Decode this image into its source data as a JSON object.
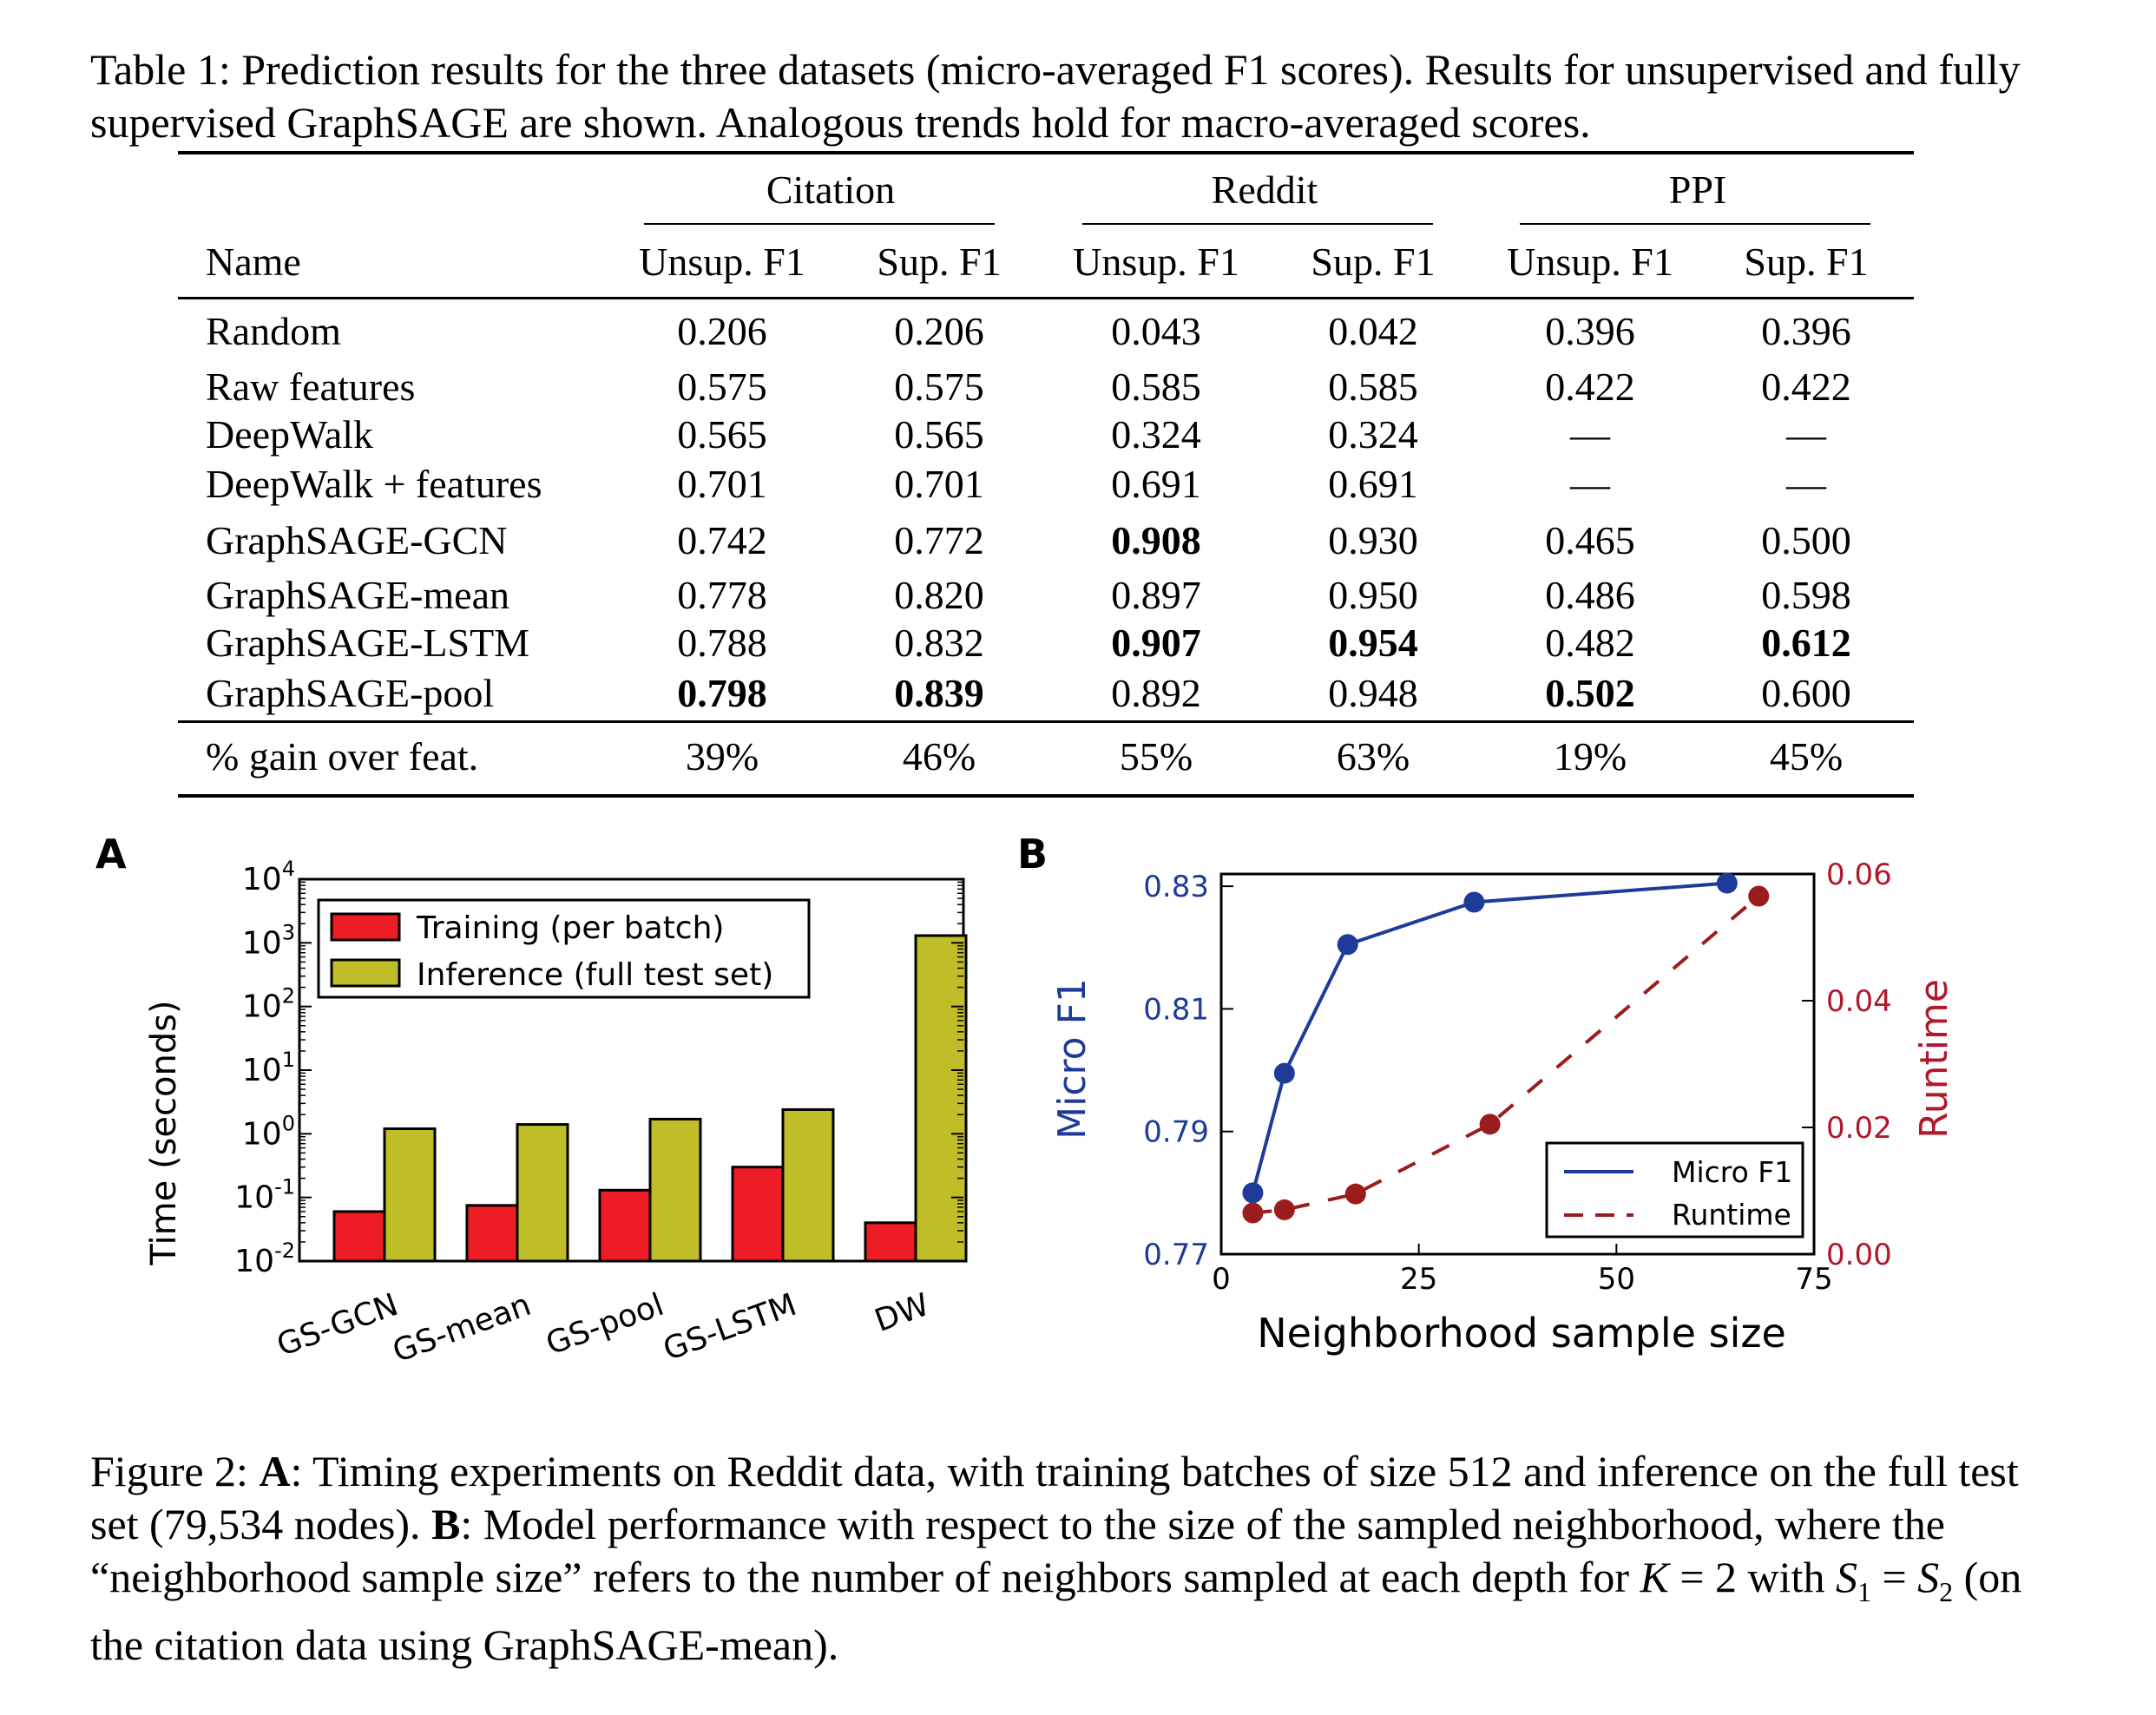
{
  "table": {
    "caption": "Table 1: Prediction results for the three datasets (micro-averaged F1 scores). Results for unsupervised and fully supervised GraphSAGE are shown. Analogous trends hold for macro-averaged scores.",
    "groups": [
      "Citation",
      "Reddit",
      "PPI"
    ],
    "name_header": "Name",
    "sub_headers": [
      "Unsup. F1",
      "Sup. F1",
      "Unsup. F1",
      "Sup. F1",
      "Unsup. F1",
      "Sup. F1"
    ],
    "baseline_rows": [
      {
        "name": "Random",
        "values": [
          "0.206",
          "0.206",
          "0.043",
          "0.042",
          "0.396",
          "0.396"
        ]
      },
      {
        "name": "Raw features",
        "values": [
          "0.575",
          "0.575",
          "0.585",
          "0.585",
          "0.422",
          "0.422"
        ]
      },
      {
        "name": "DeepWalk",
        "values": [
          "0.565",
          "0.565",
          "0.324",
          "0.324",
          "—",
          "—"
        ]
      },
      {
        "name": "DeepWalk + features",
        "values": [
          "0.701",
          "0.701",
          "0.691",
          "0.691",
          "—",
          "—"
        ]
      }
    ],
    "graphsage_rows": [
      {
        "name": "GraphSAGE-GCN",
        "values": [
          "0.742",
          "0.772",
          "0.908",
          "0.930",
          "0.465",
          "0.500"
        ],
        "bold": [
          false,
          false,
          true,
          false,
          false,
          false
        ]
      },
      {
        "name": "GraphSAGE-mean",
        "values": [
          "0.778",
          "0.820",
          "0.897",
          "0.950",
          "0.486",
          "0.598"
        ],
        "bold": [
          false,
          false,
          false,
          false,
          false,
          false
        ]
      },
      {
        "name": "GraphSAGE-LSTM",
        "values": [
          "0.788",
          "0.832",
          "0.907",
          "0.954",
          "0.482",
          "0.612"
        ],
        "bold": [
          false,
          false,
          true,
          true,
          false,
          true
        ]
      },
      {
        "name": "GraphSAGE-pool",
        "values": [
          "0.798",
          "0.839",
          "0.892",
          "0.948",
          "0.502",
          "0.600"
        ],
        "bold": [
          true,
          true,
          false,
          false,
          true,
          false
        ]
      }
    ],
    "gain_row": {
      "name": "% gain over feat.",
      "values": [
        "39%",
        "46%",
        "55%",
        "63%",
        "19%",
        "45%"
      ]
    }
  },
  "chart_data": [
    {
      "type": "bar",
      "panel_label": "A",
      "ylabel": "Time (seconds)",
      "yscale": "log",
      "ylim_exp": [
        -2,
        4
      ],
      "ytick_exps": [
        -2,
        -1,
        0,
        1,
        2,
        3,
        4
      ],
      "categories": [
        "GS-GCN",
        "GS-mean",
        "GS-pool",
        "GS-LSTM",
        "DW"
      ],
      "series": [
        {
          "name": "Training (per batch)",
          "color": "#ee1c25",
          "values": [
            0.06,
            0.075,
            0.13,
            0.3,
            0.04
          ]
        },
        {
          "name": "Inference (full test set)",
          "color": "#bfbe28",
          "values": [
            1.2,
            1.4,
            1.7,
            2.4,
            1300
          ]
        }
      ],
      "legend_position": "top-left"
    },
    {
      "type": "line",
      "panel_label": "B",
      "xlabel": "Neighborhood sample size",
      "ylabel": "Micro F1",
      "y2label": "Runtime",
      "xlim": [
        0,
        75
      ],
      "xticks": [
        "0",
        "25",
        "50",
        "75"
      ],
      "ylim": [
        0.77,
        0.832
      ],
      "yticks": [
        "0.77",
        "0.79",
        "0.81",
        "0.83"
      ],
      "y2lim": [
        0,
        0.06
      ],
      "y2ticks": [
        "0.00",
        "0.02",
        "0.04",
        "0.06"
      ],
      "series": [
        {
          "name": "Micro F1",
          "axis": "left",
          "style": "solid",
          "color": "#1f3b99",
          "x": [
            4,
            8,
            16,
            32,
            64
          ],
          "y": [
            0.78,
            0.7995,
            0.8205,
            0.8274,
            0.8305
          ]
        },
        {
          "name": "Runtime",
          "axis": "right",
          "style": "dashed",
          "color": "#9b1c1c",
          "x": [
            4,
            8,
            17,
            34,
            68
          ],
          "y": [
            0.0065,
            0.007,
            0.0095,
            0.0205,
            0.0565
          ]
        }
      ],
      "legend_position": "bottom-right"
    }
  ],
  "figure_caption": {
    "prefix": "Figure 2: ",
    "a_label": "A",
    "a_text": ": Timing experiments on Reddit data, with training batches of size 512 and inference on the full test set (79,534 nodes). ",
    "b_label": "B",
    "b_text": ": Model performance with respect to the size of the sampled neighborhood, where the “neighborhood sample size” refers to the number of neighbors sampled at each depth for ",
    "math_k": "K",
    "math_eq": " = 2 with ",
    "math_s1": "S",
    "sub1": "1",
    "math_eq2": " = ",
    "math_s2": "S",
    "sub2": "2",
    "tail": " (on the citation data using GraphSAGE-mean)."
  },
  "colors": {
    "training_bar": "#ee1c25",
    "inference_bar": "#bfbe28",
    "micro_f1_line": "#1f3b99",
    "runtime_line": "#9b1c1c"
  }
}
